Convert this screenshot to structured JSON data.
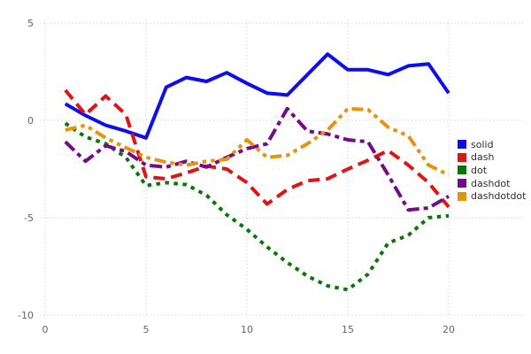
{
  "chart_data": {
    "type": "line",
    "title": "",
    "xlabel": "",
    "ylabel": "",
    "grid": true,
    "legend_position": "right",
    "x_ticks": [
      0,
      5,
      10,
      15,
      20
    ],
    "y_ticks": [
      5,
      0,
      -5,
      -10
    ],
    "xlim": [
      0,
      21.6
    ],
    "ylim": [
      -10.3,
      5.2
    ],
    "x": [
      1,
      2,
      3,
      4,
      5,
      6,
      7,
      8,
      9,
      10,
      11,
      12,
      13,
      14,
      15,
      16,
      17,
      18,
      19,
      20
    ],
    "series": [
      {
        "name": "solid",
        "color": "#0d0dee",
        "dash_style": "solid",
        "values": [
          0.85,
          0.25,
          -0.25,
          -0.55,
          -0.9,
          1.7,
          2.2,
          2.0,
          2.45,
          1.9,
          1.4,
          1.3,
          2.35,
          3.4,
          2.6,
          2.6,
          2.35,
          2.8,
          2.9,
          1.4
        ]
      },
      {
        "name": "dash",
        "color": "#e01414",
        "dash_style": "dash",
        "values": [
          1.55,
          0.3,
          1.25,
          0.3,
          -2.9,
          -3.0,
          -2.7,
          -2.35,
          -2.5,
          -3.2,
          -4.3,
          -3.55,
          -3.1,
          -3.0,
          -2.5,
          -2.05,
          -1.55,
          -2.3,
          -3.2,
          -4.45
        ]
      },
      {
        "name": "dot",
        "color": "#0a760a",
        "dash_style": "dot",
        "values": [
          -0.15,
          -0.85,
          -1.2,
          -1.9,
          -3.35,
          -3.2,
          -3.3,
          -3.85,
          -4.85,
          -5.6,
          -6.5,
          -7.3,
          -8.0,
          -8.5,
          -8.7,
          -7.9,
          -6.3,
          -5.9,
          -5.0,
          -4.9
        ]
      },
      {
        "name": "dashdot",
        "color": "#730d86",
        "dash_style": "dashdot",
        "values": [
          -1.1,
          -2.1,
          -1.3,
          -1.6,
          -2.3,
          -2.4,
          -2.1,
          -2.4,
          -1.9,
          -1.45,
          -1.2,
          0.6,
          -0.55,
          -0.7,
          -1.0,
          -1.1,
          -2.8,
          -4.6,
          -4.5,
          -3.9
        ]
      },
      {
        "name": "dashdotdot",
        "color": "#e6930f",
        "dash_style": "dashdotdot",
        "values": [
          -0.5,
          -0.25,
          -0.9,
          -1.4,
          -1.9,
          -2.15,
          -2.3,
          -2.1,
          -2.0,
          -1.0,
          -1.9,
          -1.8,
          -1.2,
          -0.5,
          0.6,
          0.55,
          -0.35,
          -0.8,
          -2.3,
          -2.8
        ]
      }
    ],
    "grid_color": "#d6d6e4"
  }
}
